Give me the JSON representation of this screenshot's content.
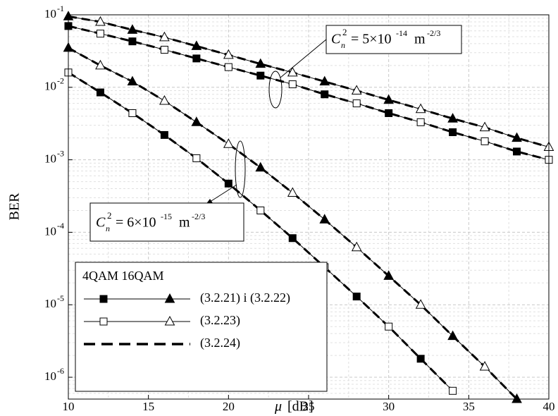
{
  "chart_data": {
    "type": "line",
    "ylabel": "BER",
    "xlabel_symbol": "μ",
    "xlabel_unit": "[dB]",
    "xlim": [
      10,
      40
    ],
    "xticks": [
      10,
      15,
      20,
      25,
      30,
      35,
      40
    ],
    "ylim": [
      5e-07,
      0.1
    ],
    "yticks": [
      {
        "value": 0.1,
        "label": "10",
        "exp": "-1"
      },
      {
        "value": 0.01,
        "label": "10",
        "exp": "-2"
      },
      {
        "value": 0.001,
        "label": "10",
        "exp": "-3"
      },
      {
        "value": 0.0001,
        "label": "10",
        "exp": "-4"
      },
      {
        "value": 1e-05,
        "label": "10",
        "exp": "-5"
      },
      {
        "value": 1e-06,
        "label": "10",
        "exp": "-6"
      }
    ],
    "log_y": true,
    "grid": true,
    "color": "#000000",
    "legend": {
      "title": "4QAM 16QAM",
      "entries": [
        "(3.2.21) i (3.2.22)",
        "(3.2.23)",
        "(3.2.24)"
      ]
    },
    "series": [
      {
        "marker": "square",
        "first_marker": "filled",
        "x": [
          10,
          12,
          14,
          16,
          18,
          20,
          22,
          24,
          26,
          28,
          30,
          32,
          34,
          36,
          38,
          40
        ],
        "values": [
          0.07,
          0.055,
          0.043,
          0.033,
          0.025,
          0.019,
          0.0145,
          0.011,
          0.008,
          0.006,
          0.0044,
          0.0033,
          0.0024,
          0.0018,
          0.0013,
          0.001
        ]
      },
      {
        "marker": "triangle",
        "first_marker": "filled",
        "x": [
          10,
          12,
          14,
          16,
          18,
          20,
          22,
          24,
          26,
          28,
          30,
          32,
          34,
          36,
          38,
          40
        ],
        "values": [
          0.095,
          0.08,
          0.062,
          0.049,
          0.037,
          0.028,
          0.021,
          0.016,
          0.012,
          0.009,
          0.0067,
          0.005,
          0.0037,
          0.0028,
          0.002,
          0.0015
        ]
      },
      {
        "marker": "square",
        "first_marker": "open",
        "x": [
          10,
          12,
          14,
          16,
          18,
          20,
          22,
          24,
          26,
          28,
          30,
          32,
          34
        ],
        "values": [
          0.016,
          0.0085,
          0.0044,
          0.0022,
          0.00105,
          0.00047,
          0.0002,
          8.3e-05,
          3.3e-05,
          1.3e-05,
          5e-06,
          1.8e-06,
          6.5e-07
        ]
      },
      {
        "marker": "triangle",
        "first_marker": "filled",
        "x": [
          10,
          12,
          14,
          16,
          18,
          20,
          22,
          24,
          26,
          28,
          30,
          32,
          34,
          36,
          38
        ],
        "values": [
          0.035,
          0.02,
          0.012,
          0.0065,
          0.0033,
          0.00165,
          0.00078,
          0.00035,
          0.00015,
          6.2e-05,
          2.5e-05,
          1e-05,
          3.7e-06,
          1.4e-06,
          5e-07
        ]
      }
    ],
    "annotations": [
      {
        "symbol": "C",
        "sub": "n",
        "sup": "2",
        "text": "= 5×10",
        "exp": "-14",
        "unit": "m",
        "unit_exp": "-2/3"
      },
      {
        "symbol": "C",
        "sub": "n",
        "sup": "2",
        "text": "= 6×10",
        "exp": "-15",
        "unit": "m",
        "unit_exp": "-2/3"
      }
    ]
  }
}
